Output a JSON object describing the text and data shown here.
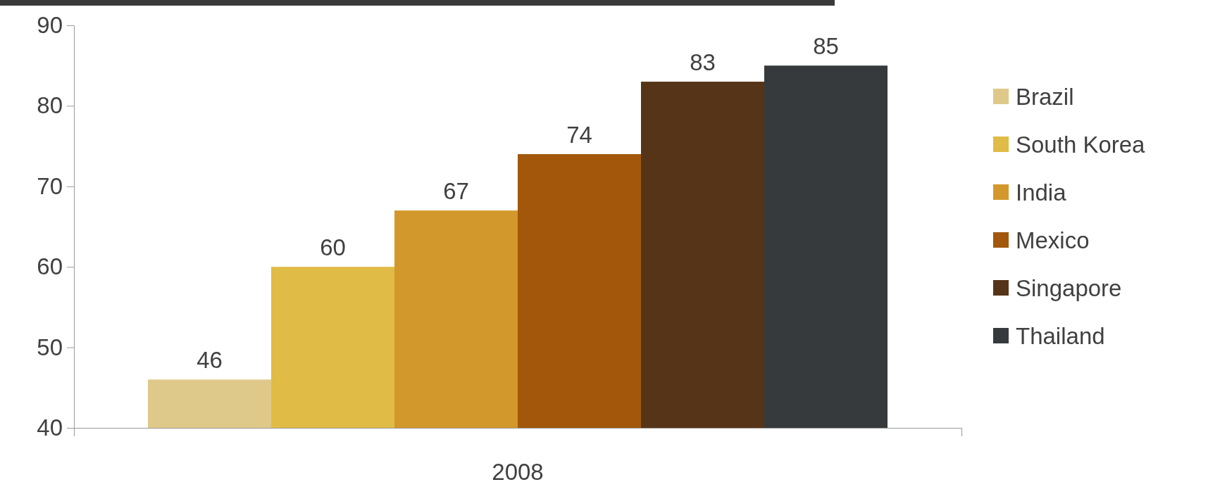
{
  "chart_data": {
    "type": "bar",
    "categories": [
      "2008"
    ],
    "series": [
      {
        "name": "Brazil",
        "color": "#dfc98a",
        "values": [
          46
        ]
      },
      {
        "name": "South Korea",
        "color": "#e0bb45",
        "values": [
          60
        ]
      },
      {
        "name": "India",
        "color": "#d3982b",
        "values": [
          67
        ]
      },
      {
        "name": "Mexico",
        "color": "#a2570b",
        "values": [
          74
        ]
      },
      {
        "name": "Singapore",
        "color": "#563418",
        "values": [
          83
        ]
      },
      {
        "name": "Thailand",
        "color": "#373a3c",
        "values": [
          85
        ]
      }
    ],
    "ylim": [
      40,
      90
    ],
    "yticks": [
      40,
      50,
      60,
      70,
      80,
      90
    ],
    "grid": false,
    "legend": "right",
    "data_labels": true
  }
}
